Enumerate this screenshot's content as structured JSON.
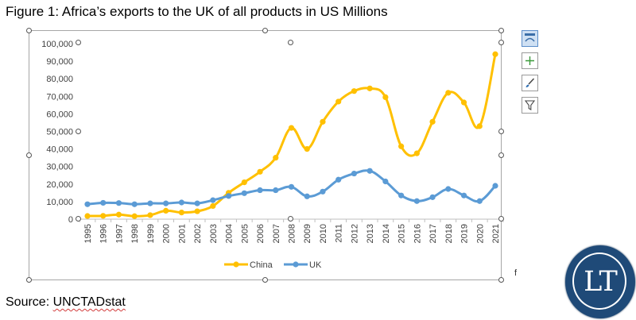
{
  "figure": {
    "title": "Figure 1: Africa’s exports to the UK of all products in US Millions",
    "source_prefix": "Source: ",
    "source_link": "UNCTADstat",
    "stray_mark": "f"
  },
  "logo": {
    "text": "LT",
    "color": "#1f4a78"
  },
  "toolbar": {
    "buttons": [
      {
        "icon": "chart-layout-icon",
        "active": true
      },
      {
        "icon": "plus-icon",
        "active": false
      },
      {
        "icon": "brush-icon",
        "active": false
      },
      {
        "icon": "filter-icon",
        "active": false
      }
    ]
  },
  "chart_data": {
    "type": "line",
    "title": "",
    "xlabel": "",
    "ylabel": "",
    "x": [
      "1995",
      "1996",
      "1997",
      "1998",
      "1999",
      "2000",
      "2001",
      "2002",
      "2003",
      "2004",
      "2005",
      "2006",
      "2007",
      "2008",
      "2009",
      "2010",
      "2011",
      "2012",
      "2013",
      "2014",
      "2015",
      "2016",
      "2017",
      "2018",
      "2019",
      "2020",
      "2021"
    ],
    "ylim": [
      0,
      100000
    ],
    "yticks": [
      "0",
      "10,000",
      "20,000",
      "30,000",
      "40,000",
      "50,000",
      "60,000",
      "70,000",
      "80,000",
      "90,000",
      "100,000"
    ],
    "ytick_values": [
      0,
      10000,
      20000,
      30000,
      40000,
      50000,
      60000,
      70000,
      80000,
      90000,
      100000
    ],
    "grid": false,
    "legend_position": "bottom",
    "series": [
      {
        "name": "China",
        "color": "#ffc000",
        "values": [
          1800,
          1900,
          2600,
          1700,
          2300,
          4800,
          3800,
          4500,
          7500,
          15000,
          21000,
          27000,
          35000,
          52000,
          40000,
          55500,
          67000,
          73000,
          74500,
          69500,
          41500,
          37500,
          55500,
          72000,
          66500,
          53000,
          94000
        ]
      },
      {
        "name": "UK",
        "color": "#5b9bd5",
        "values": [
          8500,
          9300,
          9200,
          8500,
          9000,
          9000,
          9500,
          9000,
          10800,
          13200,
          14800,
          16500,
          16500,
          18400,
          13000,
          15700,
          22500,
          26000,
          27500,
          21500,
          13500,
          10300,
          12500,
          17200,
          13500,
          10300,
          19000
        ]
      }
    ]
  }
}
